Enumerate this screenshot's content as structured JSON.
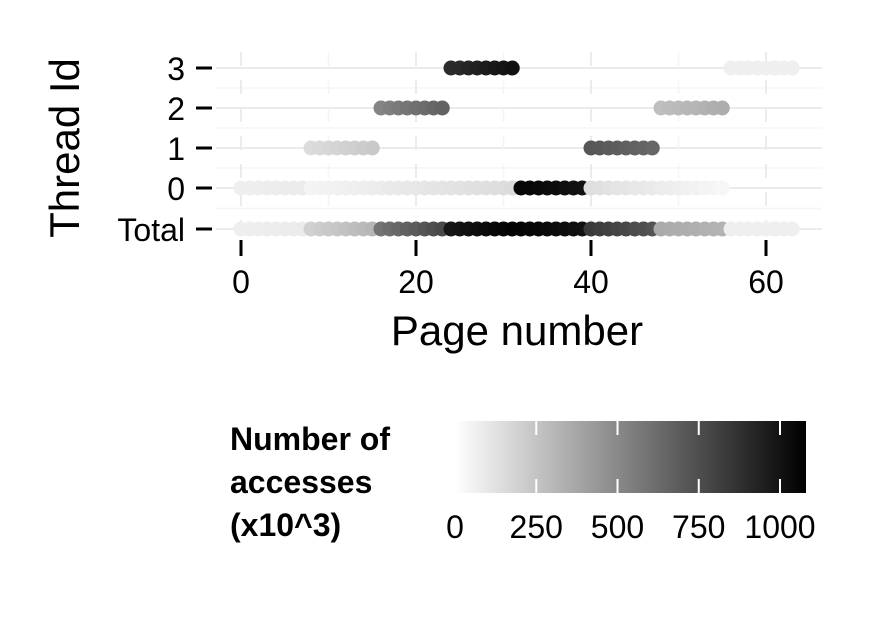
{
  "chart_data": {
    "type": "scatter",
    "xlabel": "Page number",
    "ylabel": "Thread Id",
    "xlim": [
      -3,
      66
    ],
    "x_ticks": [
      0,
      20,
      40,
      60
    ],
    "y_categories": [
      "Total",
      "0",
      "1",
      "2",
      "3"
    ],
    "grid": true,
    "color_scale": {
      "title_lines": [
        "Number of",
        "accesses",
        "(x10^3)"
      ],
      "min": 0,
      "max": 1080,
      "ticks": [
        0,
        250,
        500,
        750,
        1000
      ],
      "low_color": "#ffffff",
      "high_color": "#000000"
    },
    "series": [
      {
        "name": "3",
        "points": [
          {
            "x": 24,
            "v": 850
          },
          {
            "x": 25,
            "v": 860
          },
          {
            "x": 26,
            "v": 880
          },
          {
            "x": 27,
            "v": 900
          },
          {
            "x": 28,
            "v": 920
          },
          {
            "x": 29,
            "v": 940
          },
          {
            "x": 30,
            "v": 960
          },
          {
            "x": 31,
            "v": 980
          },
          {
            "x": 56,
            "v": 60
          },
          {
            "x": 57,
            "v": 60
          },
          {
            "x": 58,
            "v": 60
          },
          {
            "x": 59,
            "v": 60
          },
          {
            "x": 60,
            "v": 60
          },
          {
            "x": 61,
            "v": 60
          },
          {
            "x": 62,
            "v": 60
          },
          {
            "x": 63,
            "v": 60
          }
        ]
      },
      {
        "name": "2",
        "points": [
          {
            "x": 16,
            "v": 470
          },
          {
            "x": 17,
            "v": 490
          },
          {
            "x": 18,
            "v": 510
          },
          {
            "x": 19,
            "v": 530
          },
          {
            "x": 20,
            "v": 550
          },
          {
            "x": 21,
            "v": 570
          },
          {
            "x": 22,
            "v": 590
          },
          {
            "x": 23,
            "v": 610
          },
          {
            "x": 48,
            "v": 240
          },
          {
            "x": 49,
            "v": 250
          },
          {
            "x": 50,
            "v": 260
          },
          {
            "x": 51,
            "v": 270
          },
          {
            "x": 52,
            "v": 280
          },
          {
            "x": 53,
            "v": 290
          },
          {
            "x": 54,
            "v": 300
          },
          {
            "x": 55,
            "v": 310
          }
        ]
      },
      {
        "name": "1",
        "points": [
          {
            "x": 8,
            "v": 130
          },
          {
            "x": 9,
            "v": 140
          },
          {
            "x": 10,
            "v": 150
          },
          {
            "x": 11,
            "v": 160
          },
          {
            "x": 12,
            "v": 170
          },
          {
            "x": 13,
            "v": 180
          },
          {
            "x": 14,
            "v": 190
          },
          {
            "x": 15,
            "v": 200
          },
          {
            "x": 40,
            "v": 660
          },
          {
            "x": 41,
            "v": 650
          },
          {
            "x": 42,
            "v": 640
          },
          {
            "x": 43,
            "v": 630
          },
          {
            "x": 44,
            "v": 620
          },
          {
            "x": 45,
            "v": 610
          },
          {
            "x": 46,
            "v": 600
          },
          {
            "x": 47,
            "v": 590
          }
        ]
      },
      {
        "name": "0",
        "points": [
          {
            "x": 0,
            "v": 60
          },
          {
            "x": 1,
            "v": 62
          },
          {
            "x": 2,
            "v": 64
          },
          {
            "x": 3,
            "v": 66
          },
          {
            "x": 4,
            "v": 68
          },
          {
            "x": 5,
            "v": 70
          },
          {
            "x": 6,
            "v": 72
          },
          {
            "x": 7,
            "v": 74
          },
          {
            "x": 8,
            "v": 40
          },
          {
            "x": 9,
            "v": 44
          },
          {
            "x": 10,
            "v": 48
          },
          {
            "x": 11,
            "v": 52
          },
          {
            "x": 12,
            "v": 56
          },
          {
            "x": 13,
            "v": 60
          },
          {
            "x": 14,
            "v": 64
          },
          {
            "x": 15,
            "v": 68
          },
          {
            "x": 16,
            "v": 72
          },
          {
            "x": 17,
            "v": 76
          },
          {
            "x": 18,
            "v": 80
          },
          {
            "x": 19,
            "v": 84
          },
          {
            "x": 20,
            "v": 88
          },
          {
            "x": 21,
            "v": 92
          },
          {
            "x": 22,
            "v": 96
          },
          {
            "x": 23,
            "v": 100
          },
          {
            "x": 24,
            "v": 104
          },
          {
            "x": 25,
            "v": 108
          },
          {
            "x": 26,
            "v": 112
          },
          {
            "x": 27,
            "v": 116
          },
          {
            "x": 28,
            "v": 120
          },
          {
            "x": 29,
            "v": 124
          },
          {
            "x": 30,
            "v": 128
          },
          {
            "x": 31,
            "v": 132
          },
          {
            "x": 32,
            "v": 1040
          },
          {
            "x": 33,
            "v": 1030
          },
          {
            "x": 34,
            "v": 1020
          },
          {
            "x": 35,
            "v": 1010
          },
          {
            "x": 36,
            "v": 1000
          },
          {
            "x": 37,
            "v": 990
          },
          {
            "x": 38,
            "v": 980
          },
          {
            "x": 39,
            "v": 970
          },
          {
            "x": 40,
            "v": 120
          },
          {
            "x": 41,
            "v": 114
          },
          {
            "x": 42,
            "v": 108
          },
          {
            "x": 43,
            "v": 102
          },
          {
            "x": 44,
            "v": 96
          },
          {
            "x": 45,
            "v": 90
          },
          {
            "x": 46,
            "v": 84
          },
          {
            "x": 47,
            "v": 78
          },
          {
            "x": 48,
            "v": 72
          },
          {
            "x": 49,
            "v": 66
          },
          {
            "x": 50,
            "v": 60
          },
          {
            "x": 51,
            "v": 54
          },
          {
            "x": 52,
            "v": 48
          },
          {
            "x": 53,
            "v": 42
          },
          {
            "x": 54,
            "v": 36
          },
          {
            "x": 55,
            "v": 30
          }
        ]
      },
      {
        "name": "Total",
        "points": [
          {
            "x": 0,
            "v": 60
          },
          {
            "x": 1,
            "v": 62
          },
          {
            "x": 2,
            "v": 64
          },
          {
            "x": 3,
            "v": 66
          },
          {
            "x": 4,
            "v": 68
          },
          {
            "x": 5,
            "v": 70
          },
          {
            "x": 6,
            "v": 72
          },
          {
            "x": 7,
            "v": 74
          },
          {
            "x": 8,
            "v": 170
          },
          {
            "x": 9,
            "v": 185
          },
          {
            "x": 10,
            "v": 200
          },
          {
            "x": 11,
            "v": 215
          },
          {
            "x": 12,
            "v": 230
          },
          {
            "x": 13,
            "v": 245
          },
          {
            "x": 14,
            "v": 260
          },
          {
            "x": 15,
            "v": 275
          },
          {
            "x": 16,
            "v": 540
          },
          {
            "x": 17,
            "v": 565
          },
          {
            "x": 18,
            "v": 590
          },
          {
            "x": 19,
            "v": 615
          },
          {
            "x": 20,
            "v": 640
          },
          {
            "x": 21,
            "v": 665
          },
          {
            "x": 22,
            "v": 690
          },
          {
            "x": 23,
            "v": 715
          },
          {
            "x": 24,
            "v": 950
          },
          {
            "x": 25,
            "v": 965
          },
          {
            "x": 26,
            "v": 980
          },
          {
            "x": 27,
            "v": 995
          },
          {
            "x": 28,
            "v": 1010
          },
          {
            "x": 29,
            "v": 1025
          },
          {
            "x": 30,
            "v": 1040
          },
          {
            "x": 31,
            "v": 1055
          },
          {
            "x": 32,
            "v": 1050
          },
          {
            "x": 33,
            "v": 1040
          },
          {
            "x": 34,
            "v": 1030
          },
          {
            "x": 35,
            "v": 1020
          },
          {
            "x": 36,
            "v": 1010
          },
          {
            "x": 37,
            "v": 1000
          },
          {
            "x": 38,
            "v": 990
          },
          {
            "x": 39,
            "v": 980
          },
          {
            "x": 40,
            "v": 780
          },
          {
            "x": 41,
            "v": 765
          },
          {
            "x": 42,
            "v": 750
          },
          {
            "x": 43,
            "v": 735
          },
          {
            "x": 44,
            "v": 720
          },
          {
            "x": 45,
            "v": 705
          },
          {
            "x": 46,
            "v": 690
          },
          {
            "x": 47,
            "v": 675
          },
          {
            "x": 48,
            "v": 320
          },
          {
            "x": 49,
            "v": 315
          },
          {
            "x": 50,
            "v": 310
          },
          {
            "x": 51,
            "v": 305
          },
          {
            "x": 52,
            "v": 300
          },
          {
            "x": 53,
            "v": 295
          },
          {
            "x": 54,
            "v": 290
          },
          {
            "x": 55,
            "v": 285
          },
          {
            "x": 56,
            "v": 60
          },
          {
            "x": 57,
            "v": 60
          },
          {
            "x": 58,
            "v": 60
          },
          {
            "x": 59,
            "v": 60
          },
          {
            "x": 60,
            "v": 60
          },
          {
            "x": 61,
            "v": 60
          },
          {
            "x": 62,
            "v": 60
          },
          {
            "x": 63,
            "v": 60
          }
        ]
      }
    ]
  }
}
